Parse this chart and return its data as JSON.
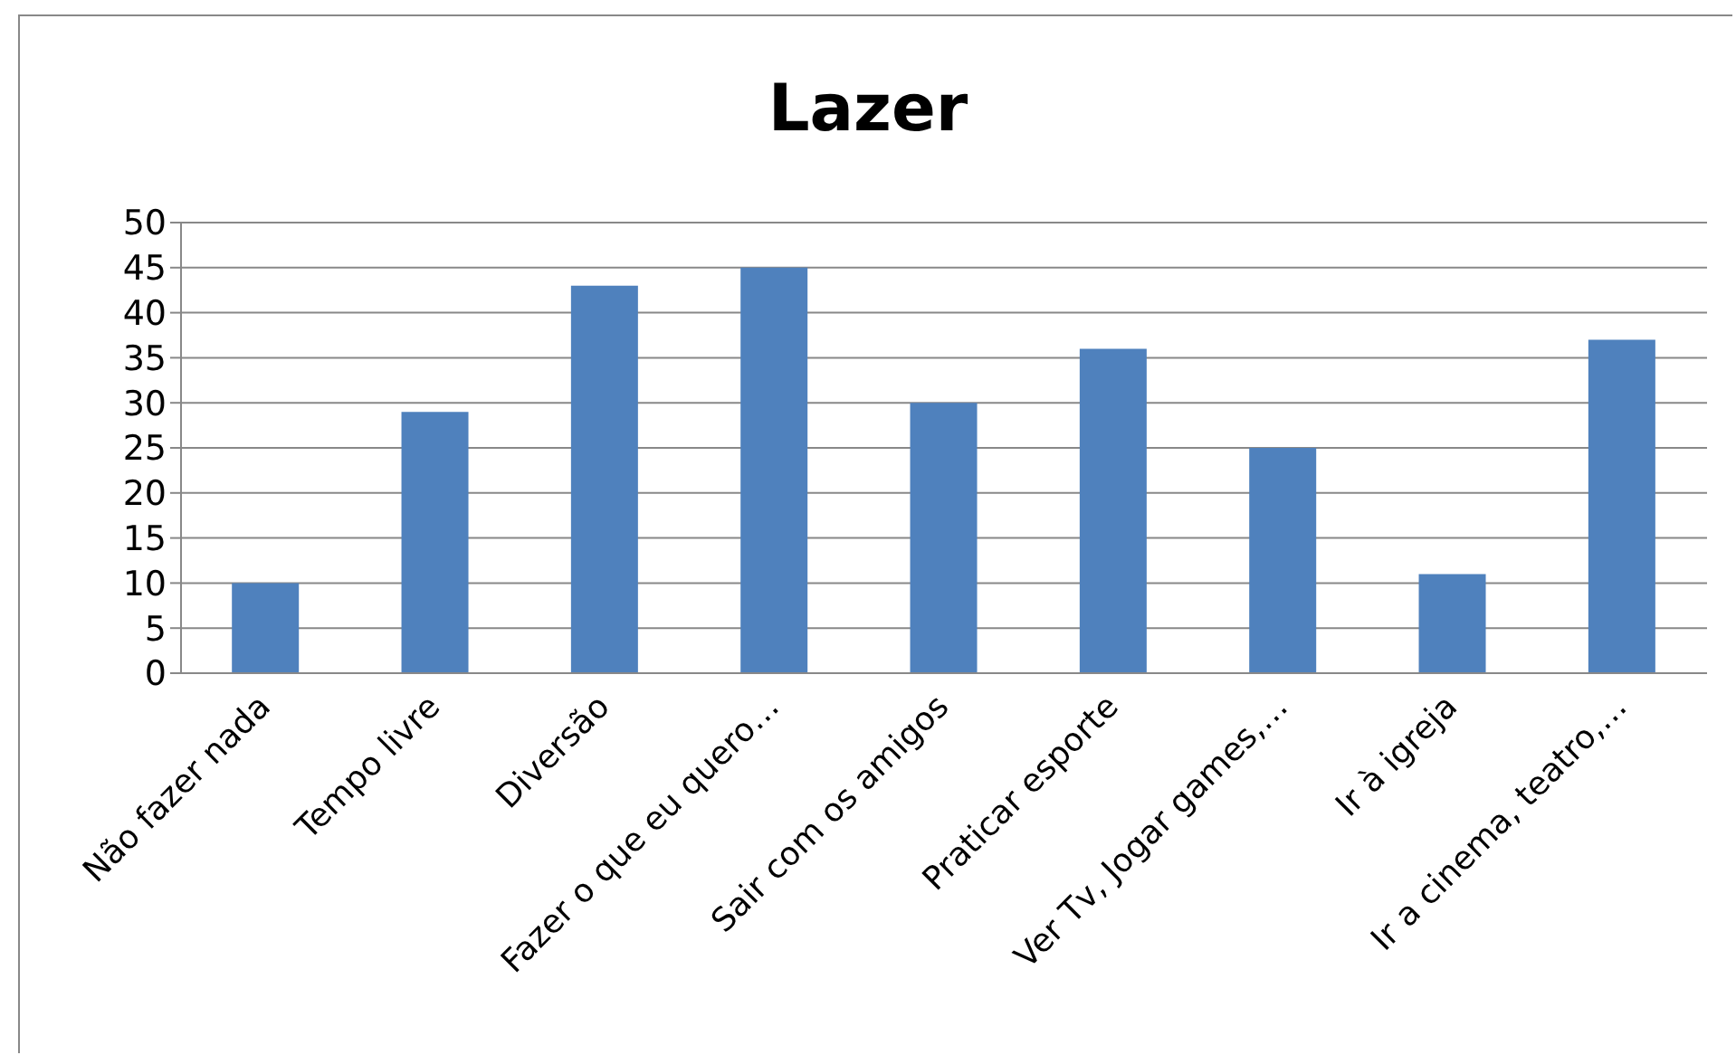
{
  "chart_data": {
    "type": "bar",
    "title": "Lazer",
    "categories": [
      "Não fazer nada",
      "Tempo livre",
      "Diversão",
      "Fazer o que eu quero…",
      "Sair com os amigos",
      "Praticar esporte",
      "Ver Tv, Jogar games,…",
      "Ir à igreja",
      "Ir a cinema, teatro,…"
    ],
    "values": [
      10,
      29,
      43,
      45,
      30,
      36,
      25,
      11,
      37
    ],
    "color": "#4f81bd",
    "ylim": [
      0,
      50
    ],
    "yticks": [
      0,
      5,
      10,
      15,
      20,
      25,
      30,
      35,
      40,
      45,
      50
    ],
    "grid": "y"
  }
}
